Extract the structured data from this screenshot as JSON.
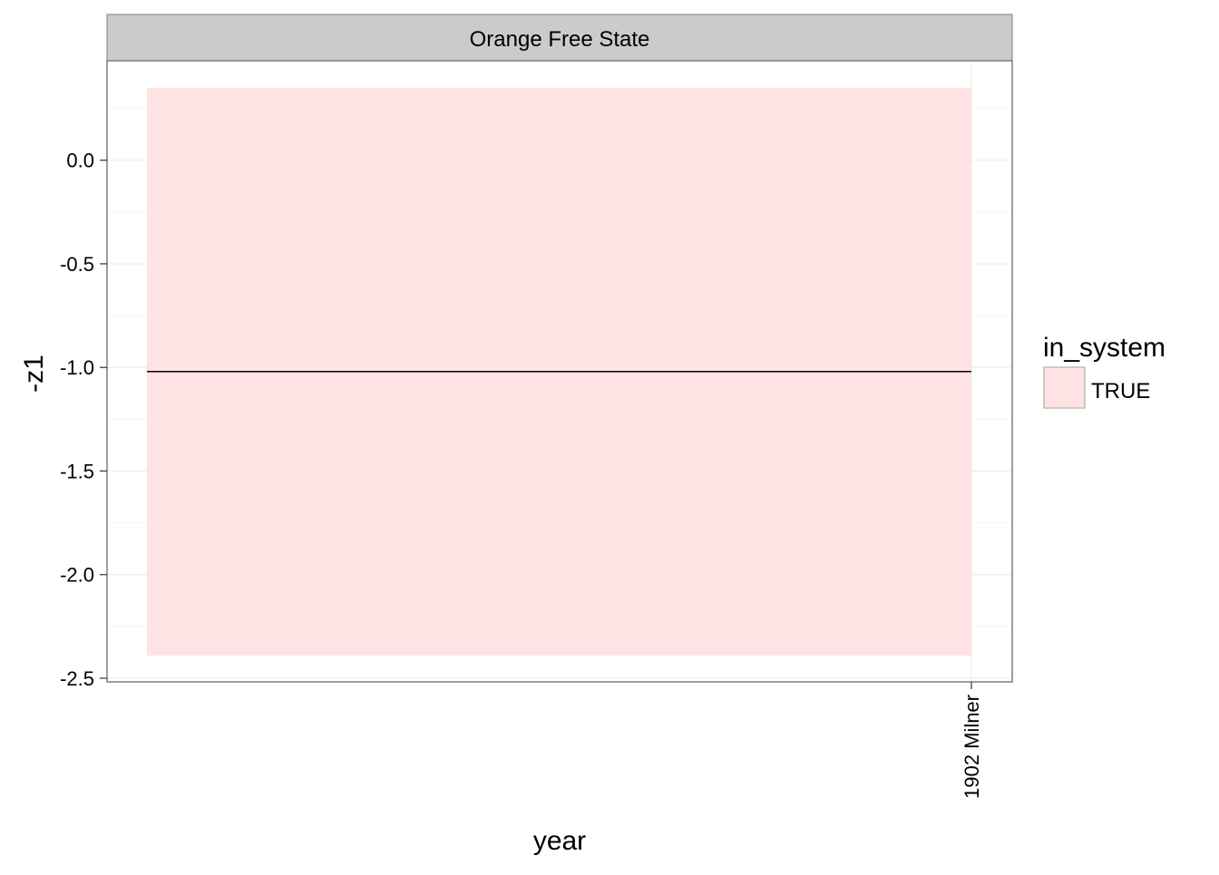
{
  "chart_data": {
    "type": "area",
    "facet_title": "Orange Free State",
    "xlabel": "year",
    "ylabel": "-z1",
    "x_categories": [
      "1902 Milner"
    ],
    "yticks": [
      0.0,
      -0.5,
      -1.0,
      -1.5,
      -2.0,
      -2.5
    ],
    "ytick_labels": [
      "0.0",
      "-0.5",
      "-1.0",
      "-1.5",
      "-2.0",
      "-2.5"
    ],
    "ylim": [
      -2.5,
      0.48
    ],
    "ribbon": {
      "x_start": 0,
      "x_end": 1,
      "ymin": -2.39,
      "ymax": 0.35
    },
    "line": {
      "x_start": 0,
      "x_end": 1,
      "y": -1.02
    },
    "legend": {
      "title": "in_system",
      "entries": [
        {
          "label": "TRUE",
          "color": "#ffe2e3"
        }
      ]
    },
    "colors": {
      "ribbon": "#ffe2e3",
      "line": "#000000",
      "strip_bg": "#cbcbcb",
      "grid": "#ebebeb",
      "panel_border": "#7f7f7f"
    }
  }
}
